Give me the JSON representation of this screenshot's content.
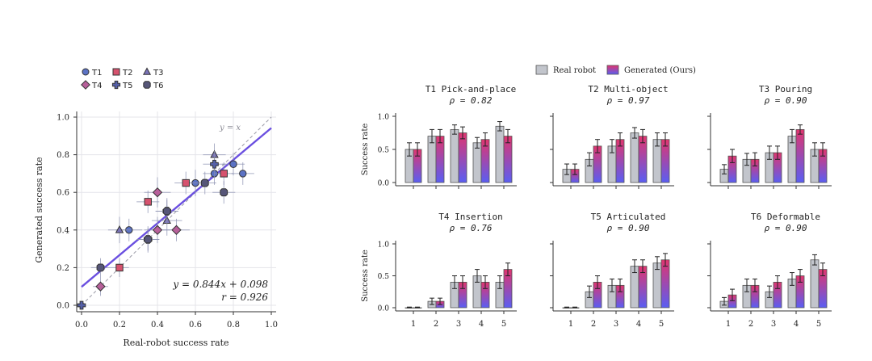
{
  "scatter_legend": [
    {
      "label": "T1",
      "task": "T1"
    },
    {
      "label": "T2",
      "task": "T2"
    },
    {
      "label": "T3",
      "task": "T3"
    },
    {
      "label": "T4",
      "task": "T4"
    },
    {
      "label": "T5",
      "task": "T5"
    },
    {
      "label": "T6",
      "task": "T6"
    }
  ],
  "bar_legend": {
    "real": "Real robot",
    "generated": "Generated (Ours)"
  },
  "colors": {
    "real_fill": "#c2c5cc",
    "generated_top": "#e0356f",
    "generated_bottom": "#5a5ef2",
    "fit_line": "#6a4fe0",
    "identity_line": "#9a9aa6",
    "T1": "#5b72c4",
    "T2": "#d6526e",
    "T3": "#7a73b8",
    "T4": "#b7609a",
    "T5": "#5560a8",
    "T6": "#565678"
  },
  "chart_data": [
    {
      "type": "scatter",
      "xlabel": "Real-robot success rate",
      "ylabel": "Generated success rate",
      "xlim": [
        0,
        1
      ],
      "ylim": [
        0,
        1
      ],
      "xticks": [
        "0.0",
        "0.2",
        "0.4",
        "0.6",
        "0.8",
        "1.0"
      ],
      "yticks": [
        "0.0",
        "0.2",
        "0.4",
        "0.6",
        "0.8",
        "1.0"
      ],
      "grid": true,
      "identity_label": "y = x",
      "fit": {
        "slope": 0.844,
        "intercept": 0.098,
        "equation": "y = 0.844x + 0.098",
        "r_text": "r = 0.926"
      },
      "points": [
        {
          "task": "T1",
          "x": 0.25,
          "y": 0.4,
          "ex": 0.07,
          "ey": 0.06
        },
        {
          "task": "T1",
          "x": 0.6,
          "y": 0.65,
          "ex": 0.06,
          "ey": 0.07
        },
        {
          "task": "T1",
          "x": 0.7,
          "y": 0.7,
          "ex": 0.06,
          "ey": 0.06
        },
        {
          "task": "T1",
          "x": 0.8,
          "y": 0.75,
          "ex": 0.06,
          "ey": 0.06
        },
        {
          "task": "T1",
          "x": 0.85,
          "y": 0.7,
          "ex": 0.06,
          "ey": 0.06
        },
        {
          "task": "T2",
          "x": 0.2,
          "y": 0.2,
          "ex": 0.05,
          "ey": 0.05
        },
        {
          "task": "T2",
          "x": 0.35,
          "y": 0.55,
          "ex": 0.06,
          "ey": 0.06
        },
        {
          "task": "T2",
          "x": 0.55,
          "y": 0.65,
          "ex": 0.06,
          "ey": 0.06
        },
        {
          "task": "T2",
          "x": 0.75,
          "y": 0.7,
          "ex": 0.05,
          "ey": 0.06
        },
        {
          "task": "T3",
          "x": 0.2,
          "y": 0.4,
          "ex": 0.06,
          "ey": 0.07
        },
        {
          "task": "T3",
          "x": 0.45,
          "y": 0.45,
          "ex": 0.08,
          "ey": 0.08
        },
        {
          "task": "T3",
          "x": 0.7,
          "y": 0.8,
          "ex": 0.06,
          "ey": 0.06
        },
        {
          "task": "T4",
          "x": 0.1,
          "y": 0.1,
          "ex": 0.04,
          "ey": 0.05
        },
        {
          "task": "T4",
          "x": 0.4,
          "y": 0.6,
          "ex": 0.07,
          "ey": 0.08
        },
        {
          "task": "T4",
          "x": 0.4,
          "y": 0.4,
          "ex": 0.07,
          "ey": 0.07
        },
        {
          "task": "T4",
          "x": 0.5,
          "y": 0.4,
          "ex": 0.07,
          "ey": 0.06
        },
        {
          "task": "T5",
          "x": 0.0,
          "y": 0.0,
          "ex": 0.02,
          "ey": 0.02
        },
        {
          "task": "T5",
          "x": 0.35,
          "y": 0.35,
          "ex": 0.06,
          "ey": 0.07
        },
        {
          "task": "T5",
          "x": 0.45,
          "y": 0.5,
          "ex": 0.06,
          "ey": 0.07
        },
        {
          "task": "T5",
          "x": 0.7,
          "y": 0.75,
          "ex": 0.06,
          "ey": 0.07
        },
        {
          "task": "T6",
          "x": 0.1,
          "y": 0.2,
          "ex": 0.05,
          "ey": 0.05
        },
        {
          "task": "T6",
          "x": 0.35,
          "y": 0.35,
          "ex": 0.06,
          "ey": 0.06
        },
        {
          "task": "T6",
          "x": 0.45,
          "y": 0.5,
          "ex": 0.06,
          "ey": 0.06
        },
        {
          "task": "T6",
          "x": 0.65,
          "y": 0.65,
          "ex": 0.06,
          "ey": 0.06
        },
        {
          "task": "T6",
          "x": 0.75,
          "y": 0.6,
          "ex": 0.06,
          "ey": 0.06
        }
      ]
    },
    {
      "type": "bar",
      "panels": [
        {
          "title": "T1   Pick-and-place",
          "rho": "ρ = 0.82",
          "real": [
            0.5,
            0.7,
            0.8,
            0.6,
            0.85
          ],
          "real_err": [
            0.1,
            0.1,
            0.07,
            0.08,
            0.07
          ],
          "gen": [
            0.5,
            0.7,
            0.75,
            0.65,
            0.7
          ],
          "gen_err": [
            0.1,
            0.1,
            0.09,
            0.1,
            0.1
          ]
        },
        {
          "title": "T2   Multi-object",
          "rho": "ρ = 0.97",
          "real": [
            0.2,
            0.35,
            0.55,
            0.75,
            0.65
          ],
          "real_err": [
            0.08,
            0.1,
            0.1,
            0.08,
            0.1
          ],
          "gen": [
            0.2,
            0.55,
            0.65,
            0.7,
            0.65
          ],
          "gen_err": [
            0.08,
            0.1,
            0.1,
            0.1,
            0.1
          ]
        },
        {
          "title": "T3   Pouring",
          "rho": "ρ = 0.90",
          "real": [
            0.2,
            0.35,
            0.45,
            0.7,
            0.5
          ],
          "real_err": [
            0.07,
            0.09,
            0.1,
            0.1,
            0.1
          ],
          "gen": [
            0.4,
            0.35,
            0.45,
            0.8,
            0.5
          ],
          "gen_err": [
            0.1,
            0.1,
            0.1,
            0.07,
            0.1
          ]
        },
        {
          "title": "T4   Insertion",
          "rho": "ρ = 0.76",
          "real": [
            0.0,
            0.1,
            0.4,
            0.5,
            0.4
          ],
          "real_err": [
            0.01,
            0.05,
            0.1,
            0.1,
            0.1
          ],
          "gen": [
            0.0,
            0.1,
            0.4,
            0.4,
            0.6
          ],
          "gen_err": [
            0.01,
            0.05,
            0.1,
            0.1,
            0.1
          ]
        },
        {
          "title": "T5   Articulated",
          "rho": "ρ = 0.90",
          "real": [
            0.0,
            0.25,
            0.35,
            0.65,
            0.7
          ],
          "real_err": [
            0.01,
            0.09,
            0.1,
            0.1,
            0.1
          ],
          "gen": [
            0.0,
            0.4,
            0.35,
            0.65,
            0.75
          ],
          "gen_err": [
            0.01,
            0.1,
            0.1,
            0.1,
            0.1
          ]
        },
        {
          "title": "T6   Deformable",
          "rho": "ρ = 0.90",
          "real": [
            0.1,
            0.35,
            0.25,
            0.45,
            0.75
          ],
          "real_err": [
            0.06,
            0.1,
            0.09,
            0.1,
            0.08
          ],
          "gen": [
            0.2,
            0.35,
            0.4,
            0.5,
            0.6
          ],
          "gen_err": [
            0.09,
            0.1,
            0.1,
            0.1,
            0.1
          ]
        }
      ],
      "categories": [
        "1",
        "2",
        "3",
        "4",
        "5"
      ],
      "ylabel": "Success rate",
      "ylim": [
        0,
        1
      ],
      "yticks": [
        "0.0",
        "0.5",
        "1.0"
      ]
    }
  ]
}
